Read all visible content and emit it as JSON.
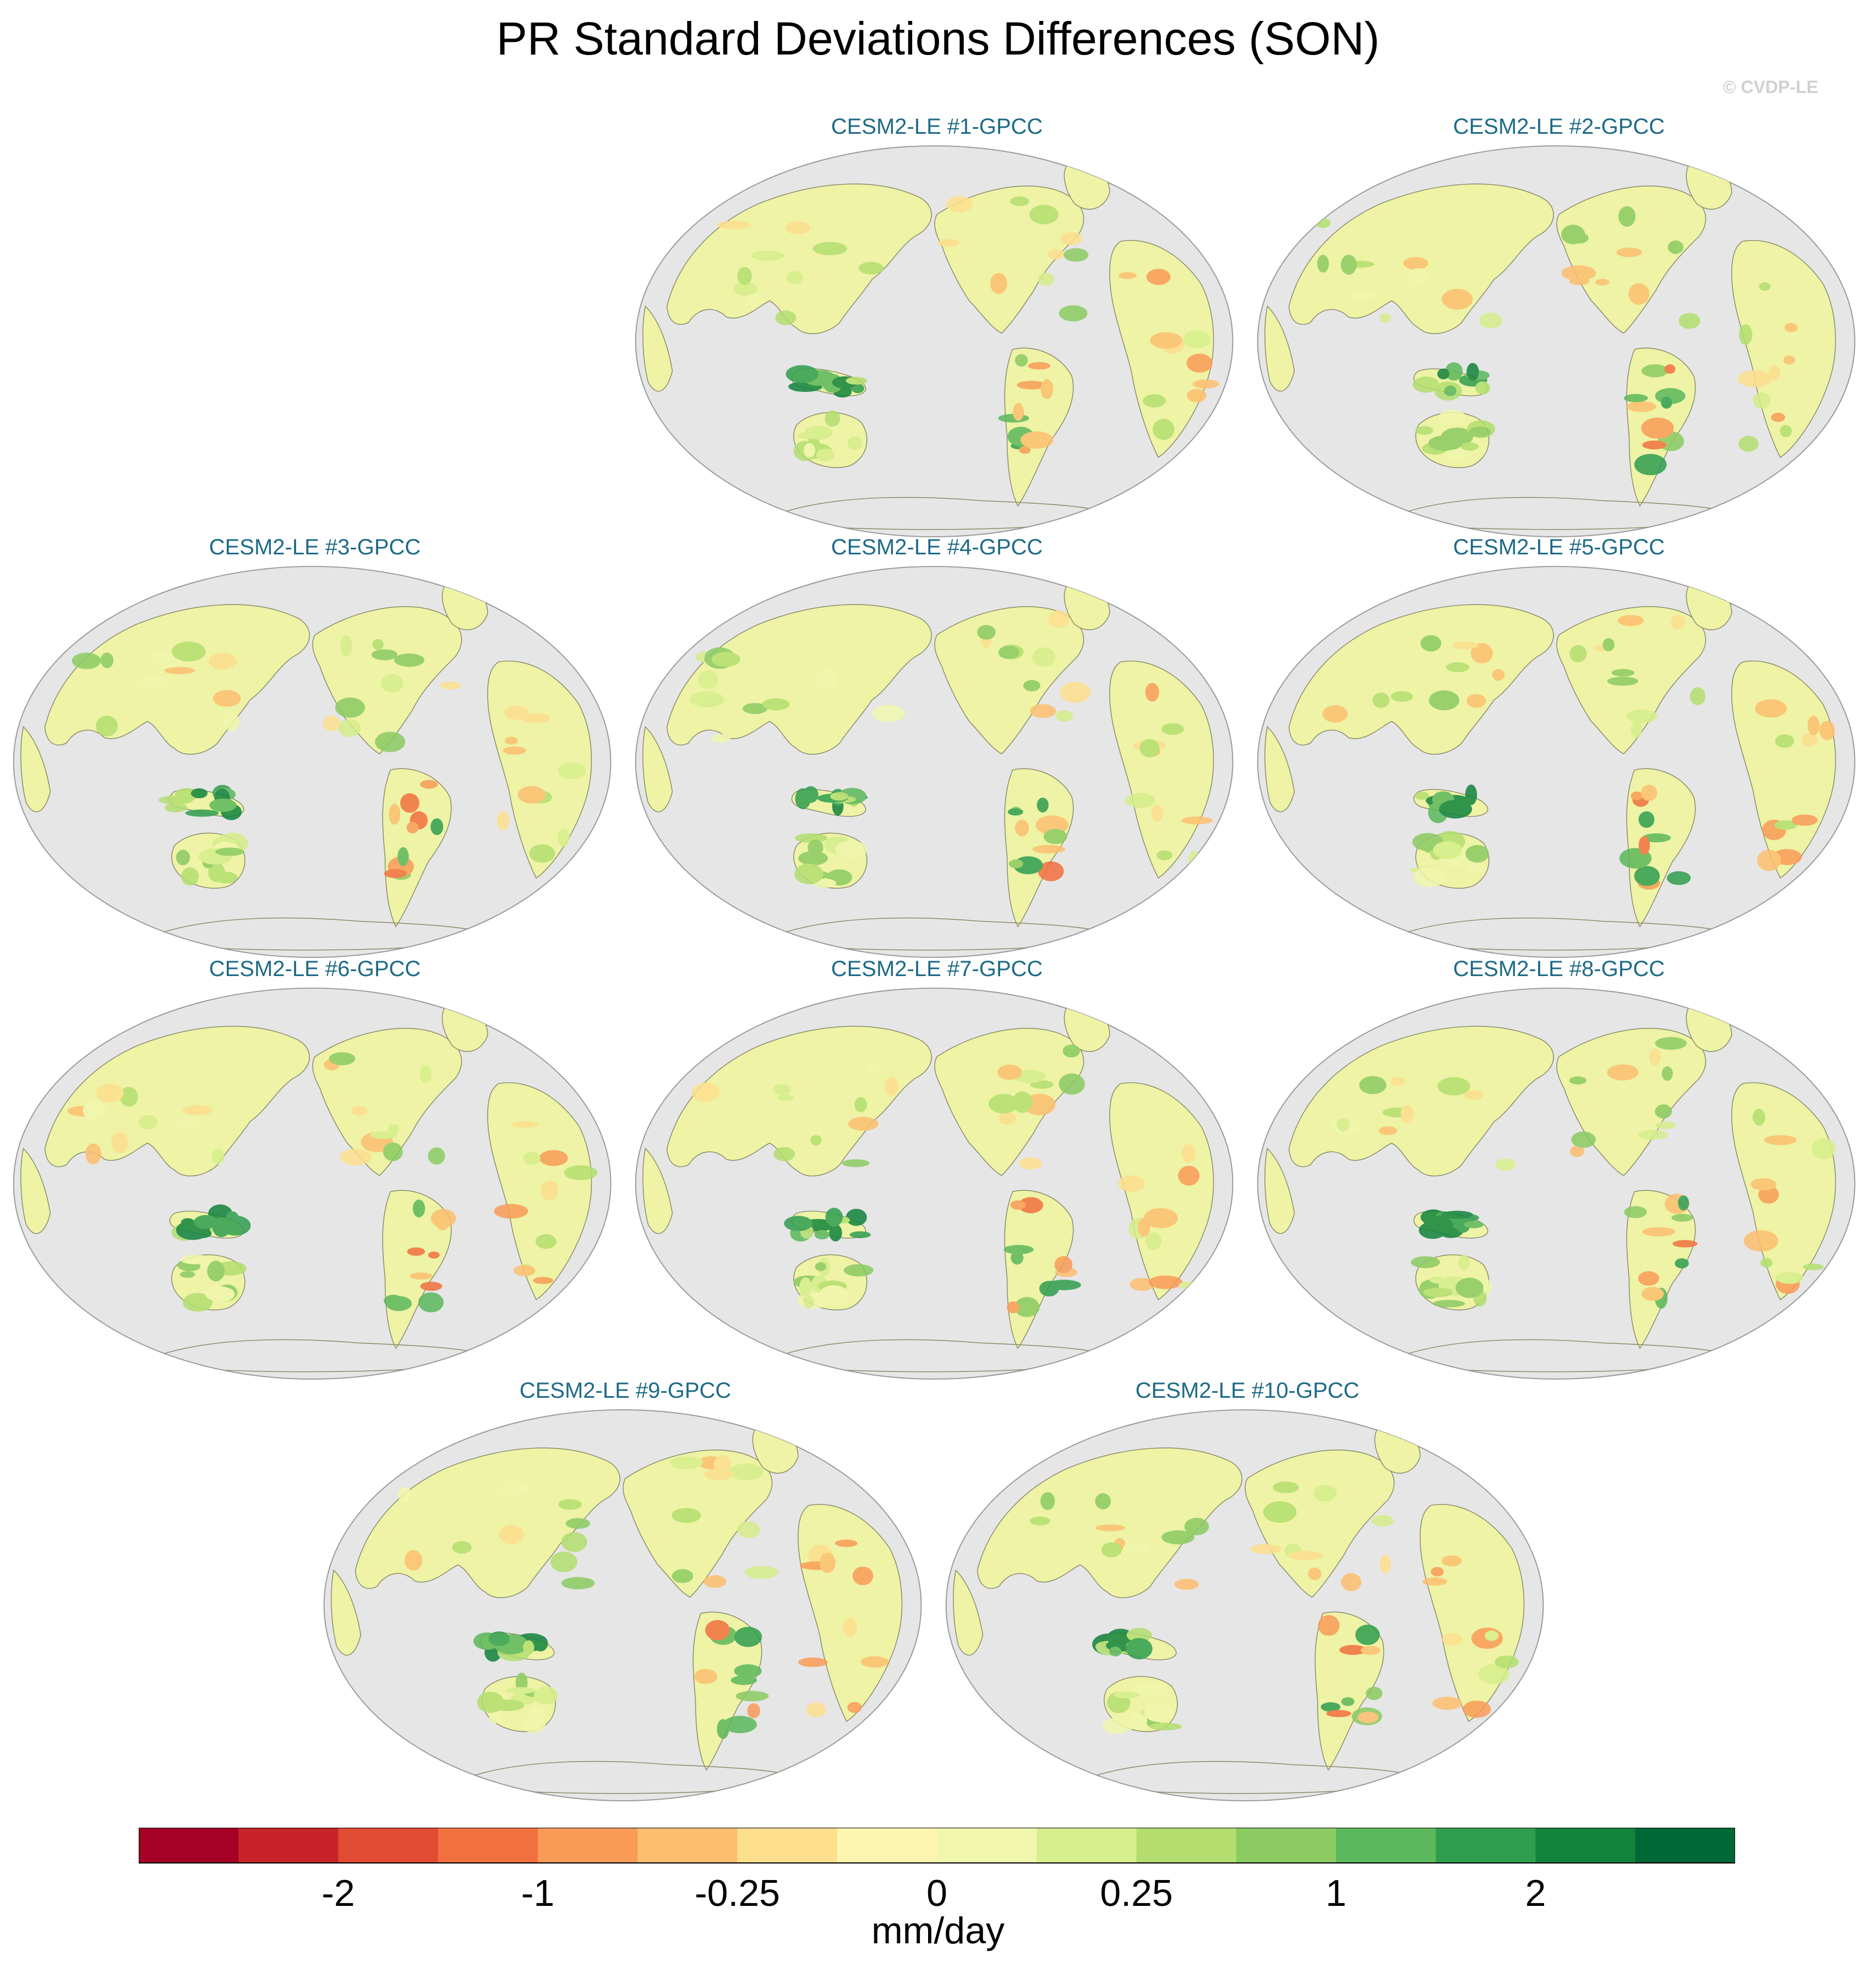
{
  "title": "PR Standard Deviations Differences (SON)",
  "watermark": "© CVDP-LE",
  "panels": [
    {
      "label": "CESM2-LE #1-GPCC"
    },
    {
      "label": "CESM2-LE #2-GPCC"
    },
    {
      "label": "CESM2-LE #3-GPCC"
    },
    {
      "label": "CESM2-LE #4-GPCC"
    },
    {
      "label": "CESM2-LE #5-GPCC"
    },
    {
      "label": "CESM2-LE #6-GPCC"
    },
    {
      "label": "CESM2-LE #7-GPCC"
    },
    {
      "label": "CESM2-LE #8-GPCC"
    },
    {
      "label": "CESM2-LE #9-GPCC"
    },
    {
      "label": "CESM2-LE #10-GPCC"
    }
  ],
  "colorbar": {
    "units": "mm/day",
    "colors": [
      "#a50026",
      "#c9232a",
      "#e04b32",
      "#f2703f",
      "#f99b57",
      "#fdbf6f",
      "#fddf8e",
      "#fef6b0",
      "#f0f7ad",
      "#d6ee8b",
      "#b3de6f",
      "#8bcb62",
      "#5cb85c",
      "#2f9e4e",
      "#12833c",
      "#006837"
    ],
    "ticks": [
      {
        "label": "-2"
      },
      {
        "label": "-1"
      },
      {
        "label": "-0.25"
      },
      {
        "label": "0"
      },
      {
        "label": "0.25"
      },
      {
        "label": "1"
      },
      {
        "label": "2"
      }
    ]
  },
  "colors": {
    "ocean": "#e6e6e6",
    "land_base": "#eef3a6",
    "panel_title": "#1d6a86"
  }
}
